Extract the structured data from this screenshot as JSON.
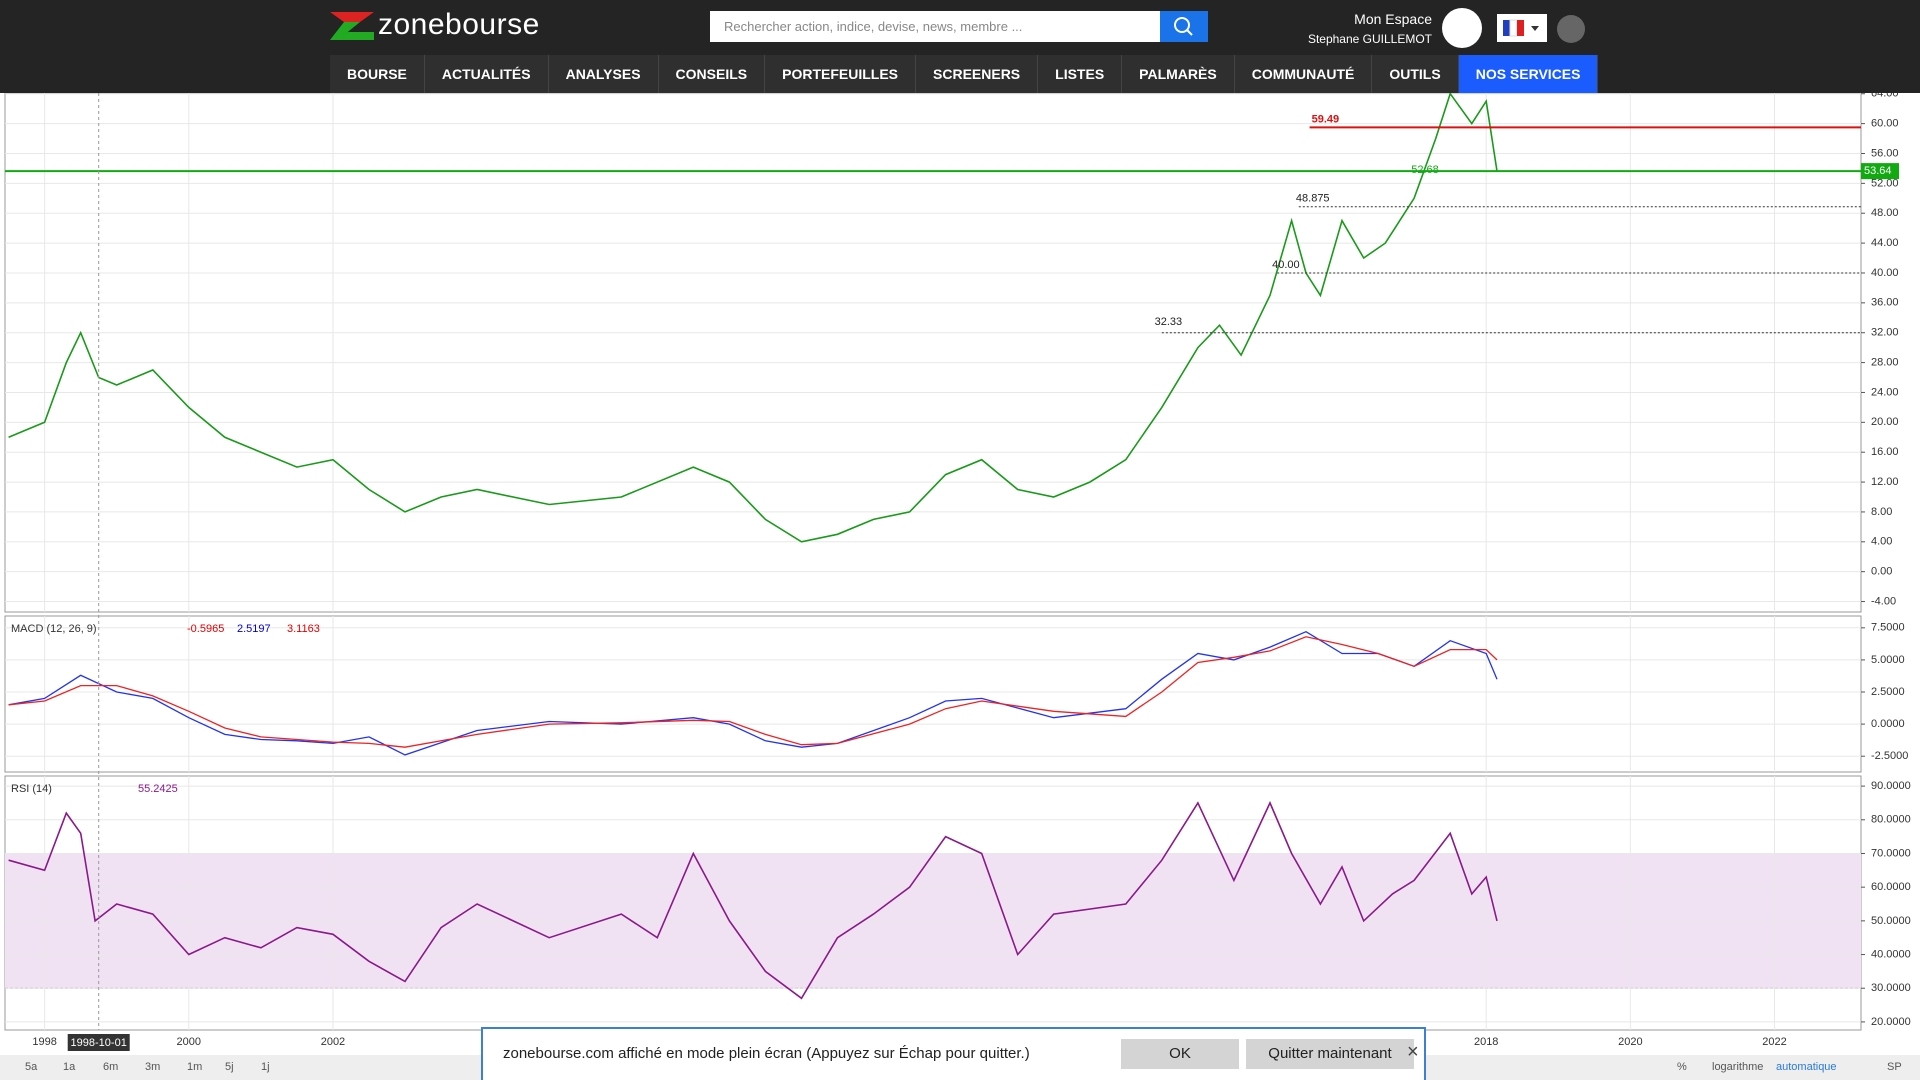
{
  "header": {
    "logo": "zonebourse",
    "search_placeholder": "Rechercher action, indice, devise, news, membre ...",
    "account_label": "Mon Espace",
    "user_name": "Stephane GUILLEMOT"
  },
  "nav": [
    "BOURSE",
    "ACTUALITÉS",
    "ANALYSES",
    "CONSEILS",
    "PORTEFEUILLES",
    "SCREENERS",
    "LISTES",
    "PALMARÈS",
    "COMMUNAUTÉ",
    "OUTILS",
    "NOS SERVICES"
  ],
  "chart_data": [
    {
      "type": "line",
      "color": "#1a9a1a",
      "xlim": [
        1997.45,
        2023.2
      ],
      "ylim": [
        -5.4,
        64.1
      ],
      "x": [
        1997.5,
        1998,
        1998.3,
        1998.5,
        1998.75,
        1999,
        1999.5,
        2000,
        2000.5,
        2001,
        2001.5,
        2002,
        2002.5,
        2003,
        2003.5,
        2004,
        2005,
        2006,
        2007,
        2007.5,
        2008,
        2008.5,
        2009,
        2009.5,
        2010,
        2010.5,
        2011,
        2011.5,
        2012,
        2012.5,
        2013,
        2013.5,
        2014,
        2014.3,
        2014.6,
        2015,
        2015.3,
        2015.5,
        2015.7,
        2016,
        2016.3,
        2016.6,
        2017,
        2017.3,
        2017.5,
        2017.8,
        2018,
        2018.15
      ],
      "values": [
        18,
        20,
        28,
        32,
        26,
        25,
        27,
        22,
        18,
        16,
        14,
        15,
        11,
        8,
        10,
        11,
        9,
        10,
        14,
        12,
        7,
        4,
        5,
        7,
        8,
        13,
        15,
        11,
        10,
        12,
        15,
        22,
        30,
        33,
        29,
        37,
        47,
        40,
        37,
        47,
        42,
        44,
        50,
        58,
        64,
        60,
        63,
        53.64
      ],
      "yticks": [
        {
          "value": -4,
          "label": "-4.00"
        },
        {
          "value": 0,
          "label": "0.00"
        },
        {
          "value": 4,
          "label": "4.00"
        },
        {
          "value": 8,
          "label": "8.00"
        },
        {
          "value": 12,
          "label": "12.00"
        },
        {
          "value": 16,
          "label": "16.00"
        },
        {
          "value": 20,
          "label": "20.00"
        },
        {
          "value": 24,
          "label": "24.00"
        },
        {
          "value": 28,
          "label": "28.00"
        },
        {
          "value": 32,
          "label": "32.00"
        },
        {
          "value": 36,
          "label": "36.00"
        },
        {
          "value": 40,
          "label": "40.00"
        },
        {
          "value": 44,
          "label": "44.00"
        },
        {
          "value": 48,
          "label": "48.00"
        },
        {
          "value": 52,
          "label": "52.00"
        },
        {
          "value": 56,
          "label": "56.00"
        },
        {
          "value": 60,
          "label": "60.00"
        },
        {
          "value": 64,
          "label": "64.00"
        }
      ],
      "grid": true,
      "levels": [
        {
          "value": 59.49,
          "color": "#dd1111",
          "from": 2015.55
        },
        {
          "value": 53.64,
          "color": "#11aa11",
          "from": 1997.45
        }
      ],
      "dotted_levels": [
        {
          "value": 48.875,
          "from": 2015.4
        },
        {
          "value": 40,
          "from": 2015.1
        },
        {
          "value": 32,
          "from": 2013.5
        }
      ],
      "annotations": [
        {
          "text": "52.68",
          "x": 2016.96,
          "y": 52.68,
          "color": "#11aa11"
        },
        {
          "text": "48.875",
          "x": 2015.36,
          "y": 48.875,
          "color": "#222222"
        },
        {
          "text": "40.00",
          "x": 2015.03,
          "y": 40,
          "color": "#222222"
        },
        {
          "text": "32.33",
          "x": 2013.4,
          "y": 32.33,
          "color": "#222222"
        }
      ]
    },
    {
      "type": "line",
      "title": "MACD (12, 26, 9)",
      "xlim": [
        1997.45,
        2023.2
      ],
      "ylim": [
        -3.73,
        8.42
      ],
      "readouts": [
        {
          "value": -0.5965,
          "color": "#e00000"
        },
        {
          "value": 2.5197,
          "color": "#0000cc"
        },
        {
          "value": 3.1163,
          "color": "#e00000"
        }
      ],
      "x": [
        1997.5,
        1998,
        1998.5,
        1999,
        1999.5,
        2000,
        2000.5,
        2001,
        2001.5,
        2002,
        2002.5,
        2003,
        2004,
        2005,
        2006,
        2007,
        2007.5,
        2008,
        2008.5,
        2009,
        2010,
        2010.5,
        2011,
        2012,
        2013,
        2013.5,
        2014,
        2014.5,
        2015,
        2015.5,
        2016,
        2016.5,
        2017,
        2017.5,
        2018,
        2018.15
      ],
      "series": [
        {
          "color": "#2233ee",
          "values": [
            1.5,
            2,
            3.8,
            2.5,
            2,
            0.5,
            -0.8,
            -1.2,
            -1.3,
            -1.5,
            -1,
            -2.4,
            -0.5,
            0.2,
            0,
            0.5,
            0,
            -1.3,
            -1.8,
            -1.5,
            0.5,
            1.8,
            2,
            0.5,
            1.2,
            3.5,
            5.5,
            5,
            6,
            7.2,
            5.5,
            5.5,
            4.5,
            6.5,
            5.5,
            3.5
          ]
        },
        {
          "color": "#ee2222",
          "values": [
            1.5,
            1.8,
            3,
            3,
            2.2,
            1,
            -0.3,
            -1,
            -1.2,
            -1.4,
            -1.5,
            -1.8,
            -0.8,
            0,
            0.1,
            0.3,
            0.2,
            -0.8,
            -1.6,
            -1.5,
            0,
            1.2,
            1.8,
            1,
            0.6,
            2.5,
            4.8,
            5.2,
            5.7,
            6.8,
            6.2,
            5.5,
            4.5,
            5.8,
            5.8,
            5
          ]
        }
      ],
      "yticks": [
        {
          "value": -2.5,
          "label": "-2.5000"
        },
        {
          "value": 0,
          "label": "0.0000"
        },
        {
          "value": 2.5,
          "label": "2.5000"
        },
        {
          "value": 5,
          "label": "5.0000"
        },
        {
          "value": 7.5,
          "label": "7.5000"
        }
      ],
      "grid": true
    },
    {
      "type": "line",
      "title": "RSI (14)",
      "xlim": [
        1997.45,
        2023.2
      ],
      "ylim": [
        17.6,
        93
      ],
      "readouts": [
        {
          "value": 55.2425,
          "color": "#8a1a8a"
        }
      ],
      "color": "#8a1a8a",
      "band": [
        30,
        70
      ],
      "x": [
        1997.5,
        1998,
        1998.3,
        1998.5,
        1998.7,
        1999,
        1999.5,
        2000,
        2000.5,
        2001,
        2001.5,
        2002,
        2002.5,
        2003,
        2003.5,
        2004,
        2005,
        2006,
        2006.5,
        2007,
        2007.5,
        2008,
        2008.5,
        2009,
        2009.5,
        2010,
        2010.5,
        2011,
        2011.5,
        2012,
        2013,
        2013.5,
        2014,
        2014.5,
        2015,
        2015.3,
        2015.7,
        2016,
        2016.3,
        2016.7,
        2017,
        2017.5,
        2017.8,
        2018,
        2018.15
      ],
      "values": [
        68,
        65,
        82,
        76,
        50,
        55,
        52,
        40,
        45,
        42,
        48,
        46,
        38,
        32,
        48,
        55,
        45,
        52,
        45,
        70,
        50,
        35,
        27,
        45,
        52,
        60,
        75,
        70,
        40,
        52,
        55,
        68,
        85,
        62,
        85,
        70,
        55,
        66,
        50,
        58,
        62,
        76,
        58,
        63,
        50
      ],
      "yticks": [
        {
          "value": 20,
          "label": "20.0000"
        },
        {
          "value": 30,
          "label": "30.0000"
        },
        {
          "value": 40,
          "label": "40.0000"
        },
        {
          "value": 50,
          "label": "50.0000"
        },
        {
          "value": 60,
          "label": "60.0000"
        },
        {
          "value": 70,
          "label": "70.0000"
        },
        {
          "value": 80,
          "label": "80.0000"
        },
        {
          "value": 90,
          "label": "90.0000"
        }
      ],
      "xticks": [
        1998,
        2000,
        2002,
        2018,
        2020,
        2022
      ],
      "grid": true
    }
  ],
  "cursor": {
    "x": 1998.75,
    "label": "1998-10-01"
  },
  "toolbar": {
    "periods": [
      "5a",
      "1a",
      "6m",
      "3m",
      "1m",
      "5j",
      "1j"
    ],
    "options": [
      "%",
      "logarithme",
      "automatique",
      "SP"
    ]
  },
  "popup": {
    "message": "zonebourse.com affiché en mode plein écran (Appuyez sur Échap pour quitter.)",
    "ok": "OK",
    "quit": "Quitter maintenant"
  }
}
